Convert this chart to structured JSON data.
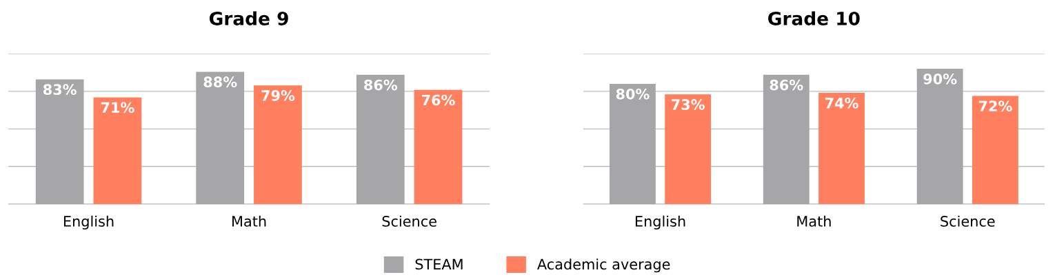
{
  "chart_data": [
    {
      "type": "bar",
      "title": "Grade 9",
      "categories": [
        "English",
        "Math",
        "Science"
      ],
      "series": [
        {
          "name": "STEAM",
          "color": "#a6a6a8",
          "values": [
            83,
            88,
            86
          ],
          "value_labels": [
            "83%",
            "88%",
            "86%"
          ]
        },
        {
          "name": "Academic average",
          "color": "#ff7f5f",
          "values": [
            71,
            79,
            76
          ],
          "value_labels": [
            "71%",
            "79%",
            "76%"
          ]
        }
      ],
      "ylim": [
        0,
        100
      ],
      "yticks": [
        {
          "value": 0,
          "label": null
        },
        {
          "value": 25,
          "label": null
        },
        {
          "value": 50,
          "label": null
        },
        {
          "value": 75,
          "label": null
        },
        {
          "value": 100,
          "label": null
        }
      ],
      "grid": "y",
      "tick_labels": "x",
      "legend": "bottom"
    },
    {
      "type": "bar",
      "title": "Grade 10",
      "categories": [
        "English",
        "Math",
        "Science"
      ],
      "series": [
        {
          "color": "#a6a6a8",
          "values": [
            80,
            86,
            90
          ],
          "value_labels": [
            "80%",
            "86%",
            "90%"
          ]
        },
        {
          "color": "#ff7f5f",
          "values": [
            73,
            74,
            72
          ],
          "value_labels": [
            "73%",
            "74%",
            "72%"
          ]
        }
      ],
      "ylim": [
        0,
        100
      ],
      "yticks": [
        {
          "value": 0,
          "label": null
        },
        {
          "value": 25,
          "label": null
        },
        {
          "value": 50,
          "label": null
        },
        {
          "value": 75,
          "label": null
        },
        {
          "value": 100,
          "label": null
        }
      ],
      "grid": "y",
      "tick_labels": "x"
    }
  ]
}
